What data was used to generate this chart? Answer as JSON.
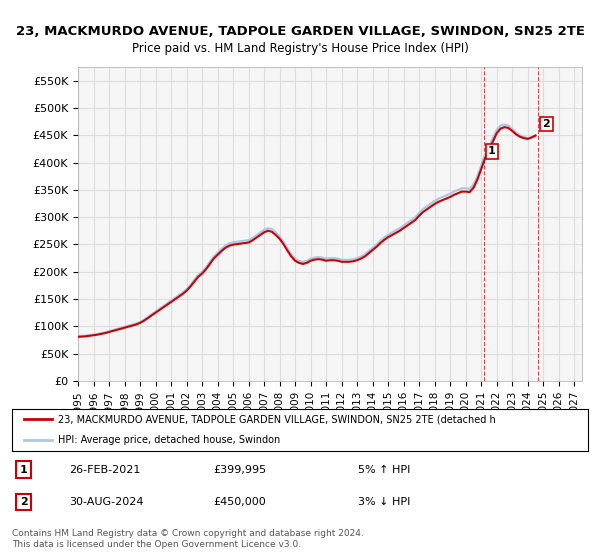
{
  "title": "23, MACKMURDO AVENUE, TADPOLE GARDEN VILLAGE, SWINDON, SN25 2TE",
  "subtitle": "Price paid vs. HM Land Registry's House Price Index (HPI)",
  "ylabel_ticks": [
    "£0",
    "£50K",
    "£100K",
    "£150K",
    "£200K",
    "£250K",
    "£300K",
    "£350K",
    "£400K",
    "£450K",
    "£500K",
    "£550K"
  ],
  "ytick_values": [
    0,
    50000,
    100000,
    150000,
    200000,
    250000,
    300000,
    350000,
    400000,
    450000,
    500000,
    550000
  ],
  "ylim": [
    0,
    575000
  ],
  "xlim_start": 1995.0,
  "xlim_end": 2027.5,
  "hpi_color": "#a8c8e8",
  "price_color": "#cc0000",
  "legend_label_price": "23, MACKMURDO AVENUE, TADPOLE GARDEN VILLAGE, SWINDON, SN25 2TE (detached h",
  "legend_label_hpi": "HPI: Average price, detached house, Swindon",
  "annotation1_label": "1",
  "annotation1_date": "26-FEB-2021",
  "annotation1_price": "£399,995",
  "annotation1_hpi": "5% ↑ HPI",
  "annotation2_label": "2",
  "annotation2_date": "30-AUG-2024",
  "annotation2_price": "£450,000",
  "annotation2_hpi": "3% ↓ HPI",
  "copyright_text": "Contains HM Land Registry data © Crown copyright and database right 2024.\nThis data is licensed under the Open Government Licence v3.0.",
  "background_color": "#ffffff",
  "grid_color": "#dddddd",
  "plot_bg_color": "#f5f5f5",
  "hpi_data_x": [
    1995.0,
    1995.25,
    1995.5,
    1995.75,
    1996.0,
    1996.25,
    1996.5,
    1996.75,
    1997.0,
    1997.25,
    1997.5,
    1997.75,
    1998.0,
    1998.25,
    1998.5,
    1998.75,
    1999.0,
    1999.25,
    1999.5,
    1999.75,
    2000.0,
    2000.25,
    2000.5,
    2000.75,
    2001.0,
    2001.25,
    2001.5,
    2001.75,
    2002.0,
    2002.25,
    2002.5,
    2002.75,
    2003.0,
    2003.25,
    2003.5,
    2003.75,
    2004.0,
    2004.25,
    2004.5,
    2004.75,
    2005.0,
    2005.25,
    2005.5,
    2005.75,
    2006.0,
    2006.25,
    2006.5,
    2006.75,
    2007.0,
    2007.25,
    2007.5,
    2007.75,
    2008.0,
    2008.25,
    2008.5,
    2008.75,
    2009.0,
    2009.25,
    2009.5,
    2009.75,
    2010.0,
    2010.25,
    2010.5,
    2010.75,
    2011.0,
    2011.25,
    2011.5,
    2011.75,
    2012.0,
    2012.25,
    2012.5,
    2012.75,
    2013.0,
    2013.25,
    2013.5,
    2013.75,
    2014.0,
    2014.25,
    2014.5,
    2014.75,
    2015.0,
    2015.25,
    2015.5,
    2015.75,
    2016.0,
    2016.25,
    2016.5,
    2016.75,
    2017.0,
    2017.25,
    2017.5,
    2017.75,
    2018.0,
    2018.25,
    2018.5,
    2018.75,
    2019.0,
    2019.25,
    2019.5,
    2019.75,
    2020.0,
    2020.25,
    2020.5,
    2020.75,
    2021.0,
    2021.25,
    2021.5,
    2021.75,
    2022.0,
    2022.25,
    2022.5,
    2022.75,
    2023.0,
    2023.25,
    2023.5,
    2023.75,
    2024.0,
    2024.25,
    2024.5
  ],
  "hpi_data_y": [
    82000,
    82500,
    83000,
    84000,
    85000,
    86000,
    87500,
    89000,
    91000,
    93000,
    95000,
    97000,
    99000,
    101000,
    103000,
    105000,
    108000,
    112000,
    117000,
    122000,
    127000,
    132000,
    137000,
    142000,
    147000,
    152000,
    157000,
    162000,
    168000,
    176000,
    185000,
    194000,
    200000,
    208000,
    218000,
    228000,
    235000,
    242000,
    248000,
    252000,
    254000,
    255000,
    256000,
    257000,
    258000,
    262000,
    267000,
    272000,
    277000,
    280000,
    278000,
    272000,
    265000,
    255000,
    243000,
    232000,
    224000,
    220000,
    218000,
    220000,
    224000,
    226000,
    227000,
    226000,
    224000,
    225000,
    225000,
    224000,
    222000,
    222000,
    222000,
    223000,
    225000,
    228000,
    232000,
    238000,
    244000,
    250000,
    257000,
    263000,
    268000,
    272000,
    276000,
    280000,
    285000,
    290000,
    295000,
    300000,
    308000,
    315000,
    320000,
    325000,
    330000,
    334000,
    337000,
    340000,
    343000,
    347000,
    350000,
    353000,
    353000,
    352000,
    360000,
    375000,
    395000,
    415000,
    430000,
    445000,
    460000,
    468000,
    470000,
    468000,
    462000,
    455000,
    450000,
    447000,
    445000,
    447000,
    450000
  ],
  "price_points_x": [
    2021.15,
    2024.66
  ],
  "price_points_y": [
    399995,
    450000
  ],
  "sale1_x": 2021.15,
  "sale1_y": 399995,
  "sale2_x": 2024.66,
  "sale2_y": 450000,
  "xtick_years": [
    1995,
    1996,
    1997,
    1998,
    1999,
    2000,
    2001,
    2002,
    2003,
    2004,
    2005,
    2006,
    2007,
    2008,
    2009,
    2010,
    2011,
    2012,
    2013,
    2014,
    2015,
    2016,
    2017,
    2018,
    2019,
    2020,
    2021,
    2022,
    2023,
    2024,
    2025,
    2026,
    2027
  ]
}
